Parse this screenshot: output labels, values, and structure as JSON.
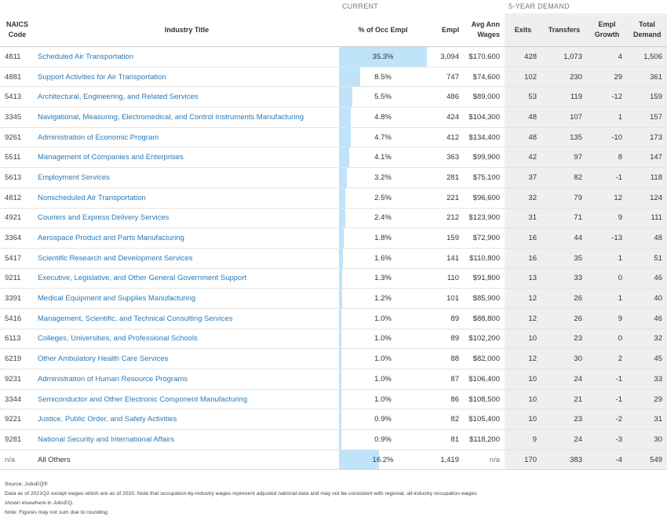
{
  "group_headers": {
    "current": "CURRENT",
    "five_year": "5-YEAR DEMAND"
  },
  "columns": {
    "naics": "NAICS Code",
    "title": "Industry Title",
    "pct": "% of Occ Empl",
    "empl": "Empl",
    "wages": "Avg Ann Wages",
    "exits": "Exits",
    "transfers": "Transfers",
    "growth": "Empl Growth",
    "total": "Total Demand"
  },
  "rows": [
    {
      "code": "4811",
      "title": "Scheduled Air Transportation",
      "pct": "35.3%",
      "pct_value": 35.3,
      "empl": "3,094",
      "wages": "$170,600",
      "exits": "428",
      "transfers": "1,073",
      "growth": "4",
      "total": "1,506"
    },
    {
      "code": "4881",
      "title": "Support Activities for Air Transportation",
      "pct": "8.5%",
      "pct_value": 8.5,
      "empl": "747",
      "wages": "$74,600",
      "exits": "102",
      "transfers": "230",
      "growth": "29",
      "total": "361"
    },
    {
      "code": "5413",
      "title": "Architectural, Engineering, and Related Services",
      "pct": "5.5%",
      "pct_value": 5.5,
      "empl": "486",
      "wages": "$89,000",
      "exits": "53",
      "transfers": "119",
      "growth": "-12",
      "total": "159"
    },
    {
      "code": "3345",
      "title": "Navigational, Measuring, Electromedical, and Control Instruments Manufacturing",
      "pct": "4.8%",
      "pct_value": 4.8,
      "empl": "424",
      "wages": "$104,300",
      "exits": "48",
      "transfers": "107",
      "growth": "1",
      "total": "157"
    },
    {
      "code": "9261",
      "title": "Administration of Economic Program",
      "pct": "4.7%",
      "pct_value": 4.7,
      "empl": "412",
      "wages": "$134,400",
      "exits": "48",
      "transfers": "135",
      "growth": "-10",
      "total": "173"
    },
    {
      "code": "5511",
      "title": "Management of Companies and Enterprises",
      "pct": "4.1%",
      "pct_value": 4.1,
      "empl": "363",
      "wages": "$99,900",
      "exits": "42",
      "transfers": "97",
      "growth": "8",
      "total": "147"
    },
    {
      "code": "5613",
      "title": "Employment Services",
      "pct": "3.2%",
      "pct_value": 3.2,
      "empl": "281",
      "wages": "$75,100",
      "exits": "37",
      "transfers": "82",
      "growth": "-1",
      "total": "118"
    },
    {
      "code": "4812",
      "title": "Nonscheduled Air Transportation",
      "pct": "2.5%",
      "pct_value": 2.5,
      "empl": "221",
      "wages": "$96,600",
      "exits": "32",
      "transfers": "79",
      "growth": "12",
      "total": "124"
    },
    {
      "code": "4921",
      "title": "Couriers and Express Delivery Services",
      "pct": "2.4%",
      "pct_value": 2.4,
      "empl": "212",
      "wages": "$123,900",
      "exits": "31",
      "transfers": "71",
      "growth": "9",
      "total": "111"
    },
    {
      "code": "3364",
      "title": "Aerospace Product and Parts Manufacturing",
      "pct": "1.8%",
      "pct_value": 1.8,
      "empl": "159",
      "wages": "$72,900",
      "exits": "16",
      "transfers": "44",
      "growth": "-13",
      "total": "48"
    },
    {
      "code": "5417",
      "title": "Scientific Research and Development Services",
      "pct": "1.6%",
      "pct_value": 1.6,
      "empl": "141",
      "wages": "$110,800",
      "exits": "16",
      "transfers": "35",
      "growth": "1",
      "total": "51"
    },
    {
      "code": "9211",
      "title": "Executive, Legislative, and Other General Government Support",
      "pct": "1.3%",
      "pct_value": 1.3,
      "empl": "110",
      "wages": "$91,800",
      "exits": "13",
      "transfers": "33",
      "growth": "0",
      "total": "46"
    },
    {
      "code": "3391",
      "title": "Medical Equipment and Supplies Manufacturing",
      "pct": "1.2%",
      "pct_value": 1.2,
      "empl": "101",
      "wages": "$85,900",
      "exits": "12",
      "transfers": "26",
      "growth": "1",
      "total": "40"
    },
    {
      "code": "5416",
      "title": "Management, Scientific, and Technical Consulting Services",
      "pct": "1.0%",
      "pct_value": 1.0,
      "empl": "89",
      "wages": "$88,800",
      "exits": "12",
      "transfers": "26",
      "growth": "9",
      "total": "46"
    },
    {
      "code": "6113",
      "title": "Colleges, Universities, and Professional Schools",
      "pct": "1.0%",
      "pct_value": 1.0,
      "empl": "89",
      "wages": "$102,200",
      "exits": "10",
      "transfers": "23",
      "growth": "0",
      "total": "32"
    },
    {
      "code": "6219",
      "title": "Other Ambulatory Health Care Services",
      "pct": "1.0%",
      "pct_value": 1.0,
      "empl": "88",
      "wages": "$82,000",
      "exits": "12",
      "transfers": "30",
      "growth": "2",
      "total": "45"
    },
    {
      "code": "9231",
      "title": "Administration of Human Resource Programs",
      "pct": "1.0%",
      "pct_value": 1.0,
      "empl": "87",
      "wages": "$106,400",
      "exits": "10",
      "transfers": "24",
      "growth": "-1",
      "total": "33"
    },
    {
      "code": "3344",
      "title": "Semiconductor and Other Electronic Component Manufacturing",
      "pct": "1.0%",
      "pct_value": 1.0,
      "empl": "86",
      "wages": "$108,500",
      "exits": "10",
      "transfers": "21",
      "growth": "-1",
      "total": "29"
    },
    {
      "code": "9221",
      "title": "Justice, Public Order, and Safety Activities",
      "pct": "0.9%",
      "pct_value": 0.9,
      "empl": "82",
      "wages": "$105,400",
      "exits": "10",
      "transfers": "23",
      "growth": "-2",
      "total": "31"
    },
    {
      "code": "9281",
      "title": "National Security and International Affairs",
      "pct": "0.9%",
      "pct_value": 0.9,
      "empl": "81",
      "wages": "$118,200",
      "exits": "9",
      "transfers": "24",
      "growth": "-3",
      "total": "30"
    },
    {
      "code": "n/a",
      "title": "All Others",
      "pct": "16.2%",
      "pct_value": 16.2,
      "empl": "1,419",
      "wages": "n/a",
      "exits": "170",
      "transfers": "383",
      "growth": "-4",
      "total": "549",
      "plain": true
    }
  ],
  "bar_scale_max_pct": 35.3,
  "bar_color": "#bfe3f8",
  "link_color": "#2a7ab8",
  "footnotes": [
    "Source: JobsEQ®",
    "Data as of 2021Q2 except wages which are as of 2020. Note that occupation-by-industry wages represent adjusted national data and may not be consistent with regional, all-industry occupation wages",
    "shown elsewhere in JobsEQ.",
    "Note: Figures may not sum due to rounding."
  ]
}
